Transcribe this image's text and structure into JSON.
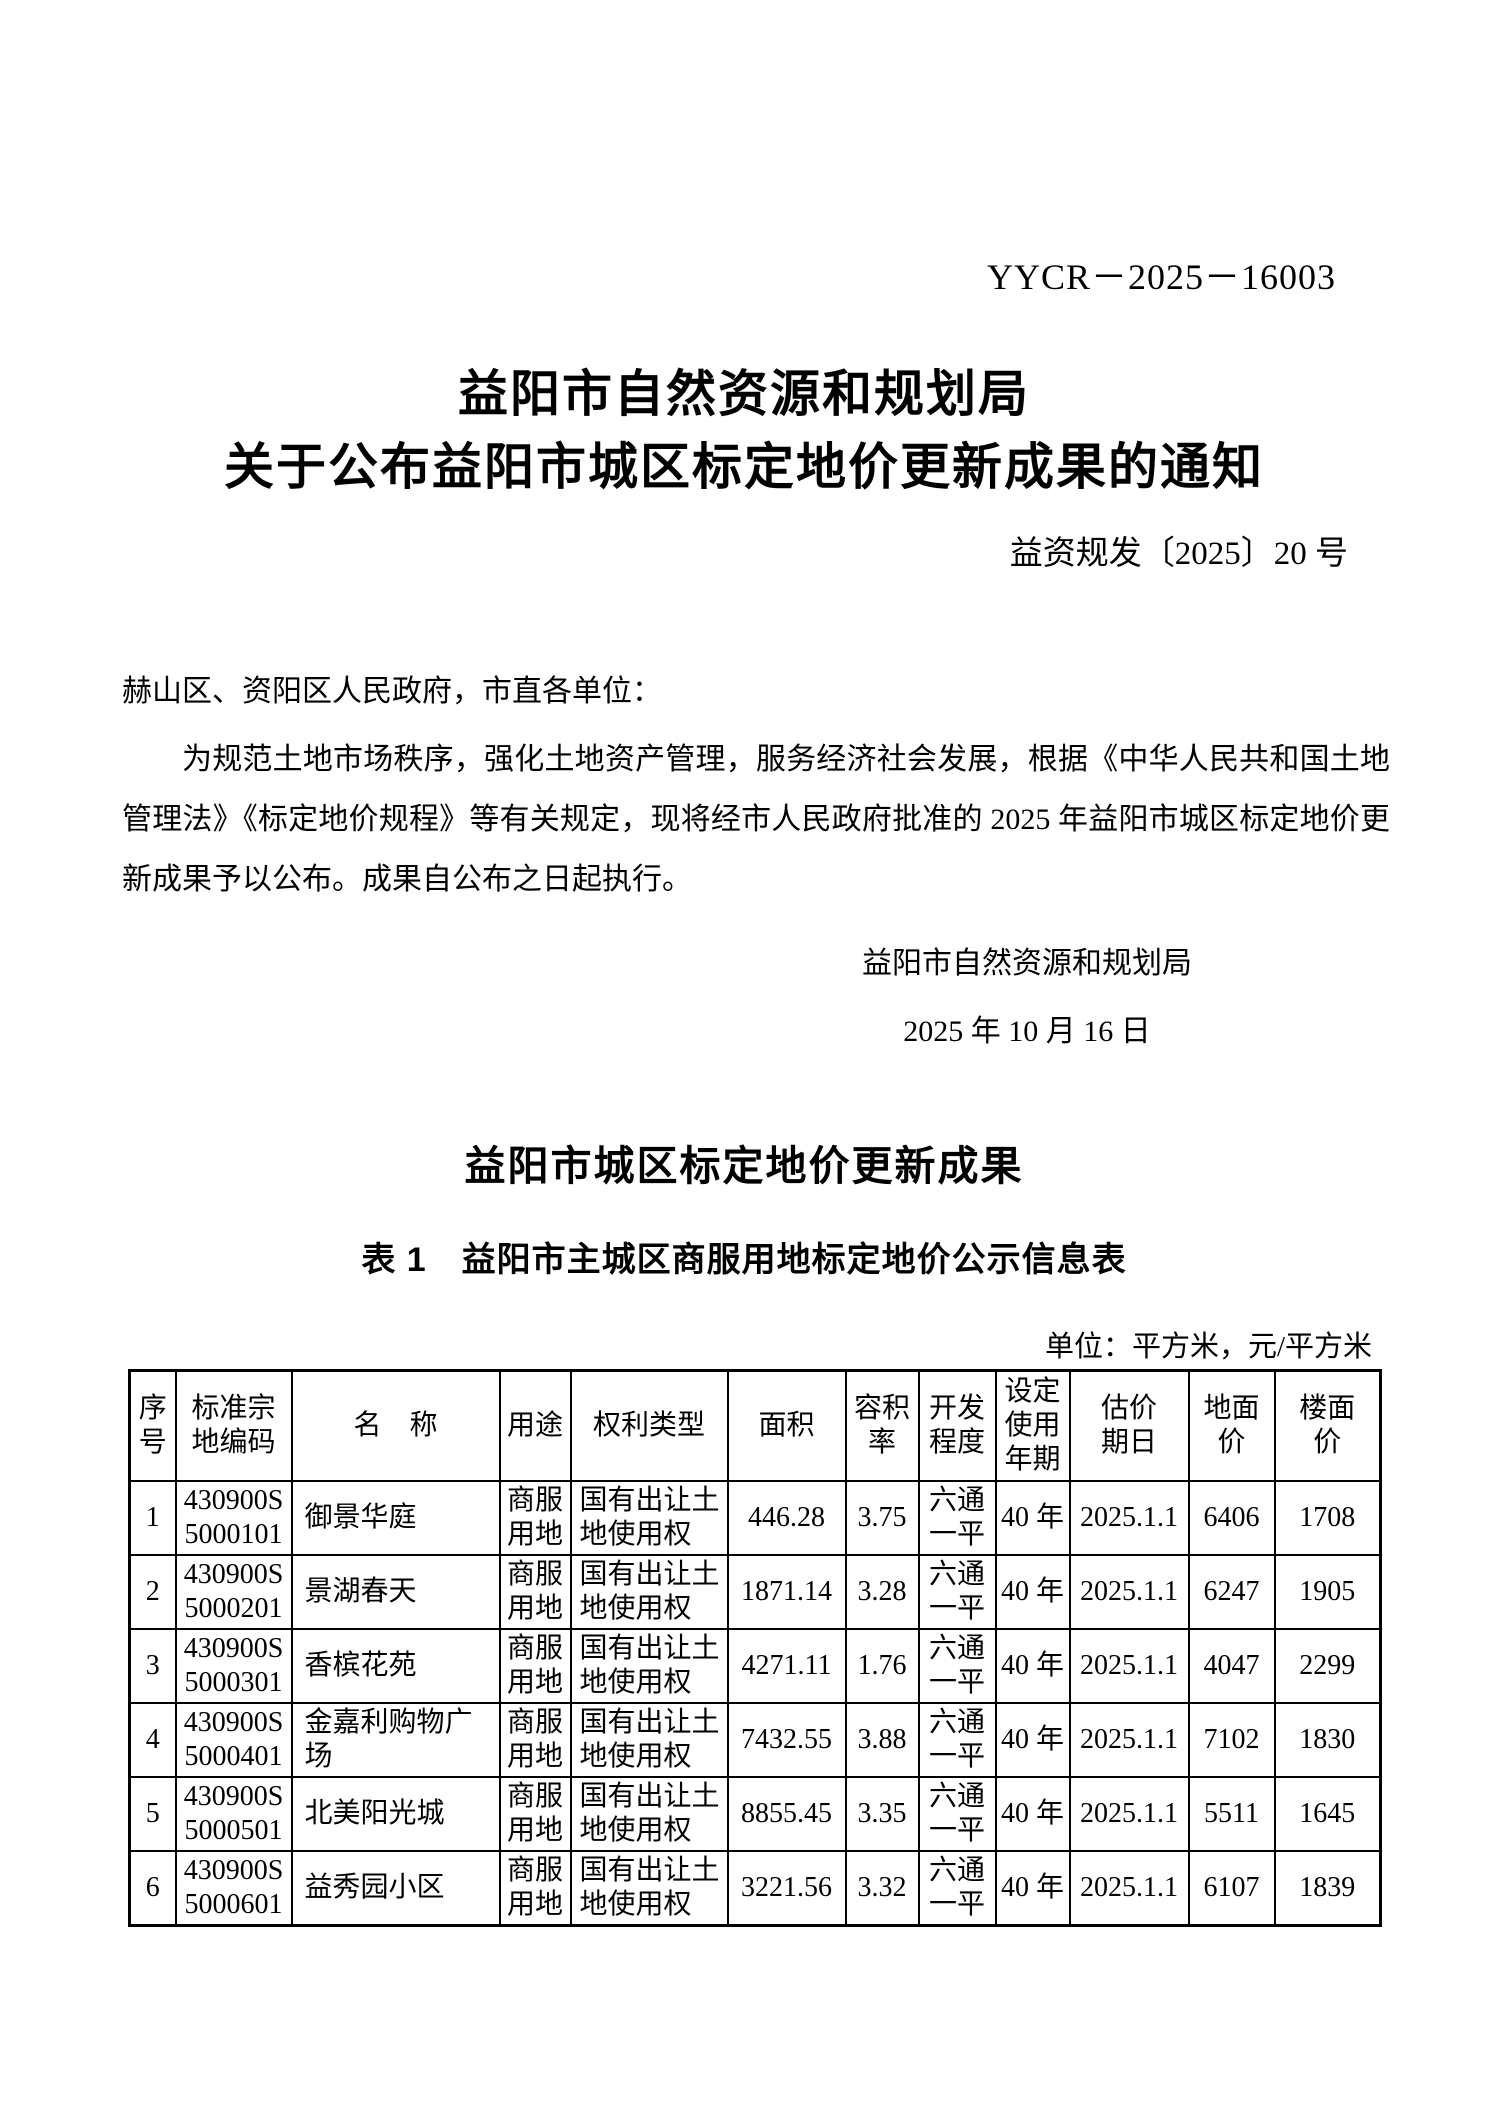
{
  "doc": {
    "ref_code": "YYCR－2025－16003",
    "title_line1": "益阳市自然资源和规划局",
    "title_line2": "关于公布益阳市城区标定地价更新成果的通知",
    "doc_number": "益资规发〔2025〕20 号",
    "salutation": "赫山区、资阳区人民政府，市直各单位：",
    "body_paragraph": "为规范土地市场秩序，强化土地资产管理，服务经济社会发展，根据《中华人民共和国土地管理法》《标定地价规程》等有关规定，现将经市人民政府批准的 2025 年益阳市城区标定地价更新成果予以公布。成果自公布之日起执行。",
    "signer": "益阳市自然资源和规划局",
    "sign_date": "2025 年 10 月 16 日",
    "section_heading": "益阳市城区标定地价更新成果",
    "table_title": "表 1　益阳市主城区商服用地标定地价公示信息表",
    "unit_note": "单位：平方米，元/平方米"
  },
  "table": {
    "headers": [
      "序\n号",
      "标准宗\n地编码",
      "名　称",
      "用途",
      "权利类型",
      "面积",
      "容积\n率",
      "开发\n程度",
      "设定\n使用\n年期",
      "估价\n期日",
      "地面\n价",
      "楼面\n价"
    ],
    "rows": [
      [
        "1",
        "430900S\n5000101",
        "御景华庭",
        "商服\n用地",
        "国有出让土\n地使用权",
        "446.28",
        "3.75",
        "六通\n一平",
        "40 年",
        "2025.1.1",
        "6406",
        "1708"
      ],
      [
        "2",
        "430900S\n5000201",
        "景湖春天",
        "商服\n用地",
        "国有出让土\n地使用权",
        "1871.14",
        "3.28",
        "六通\n一平",
        "40 年",
        "2025.1.1",
        "6247",
        "1905"
      ],
      [
        "3",
        "430900S\n5000301",
        "香槟花苑",
        "商服\n用地",
        "国有出让土\n地使用权",
        "4271.11",
        "1.76",
        "六通\n一平",
        "40 年",
        "2025.1.1",
        "4047",
        "2299"
      ],
      [
        "4",
        "430900S\n5000401",
        "金嘉利购物广场",
        "商服\n用地",
        "国有出让土\n地使用权",
        "7432.55",
        "3.88",
        "六通\n一平",
        "40 年",
        "2025.1.1",
        "7102",
        "1830"
      ],
      [
        "5",
        "430900S\n5000501",
        "北美阳光城",
        "商服\n用地",
        "国有出让土\n地使用权",
        "8855.45",
        "3.35",
        "六通\n一平",
        "40 年",
        "2025.1.1",
        "5511",
        "1645"
      ],
      [
        "6",
        "430900S\n5000601",
        "益秀园小区",
        "商服\n用地",
        "国有出让土\n地使用权",
        "3221.56",
        "3.32",
        "六通\n一平",
        "40 年",
        "2025.1.1",
        "6107",
        "1839"
      ]
    ]
  }
}
